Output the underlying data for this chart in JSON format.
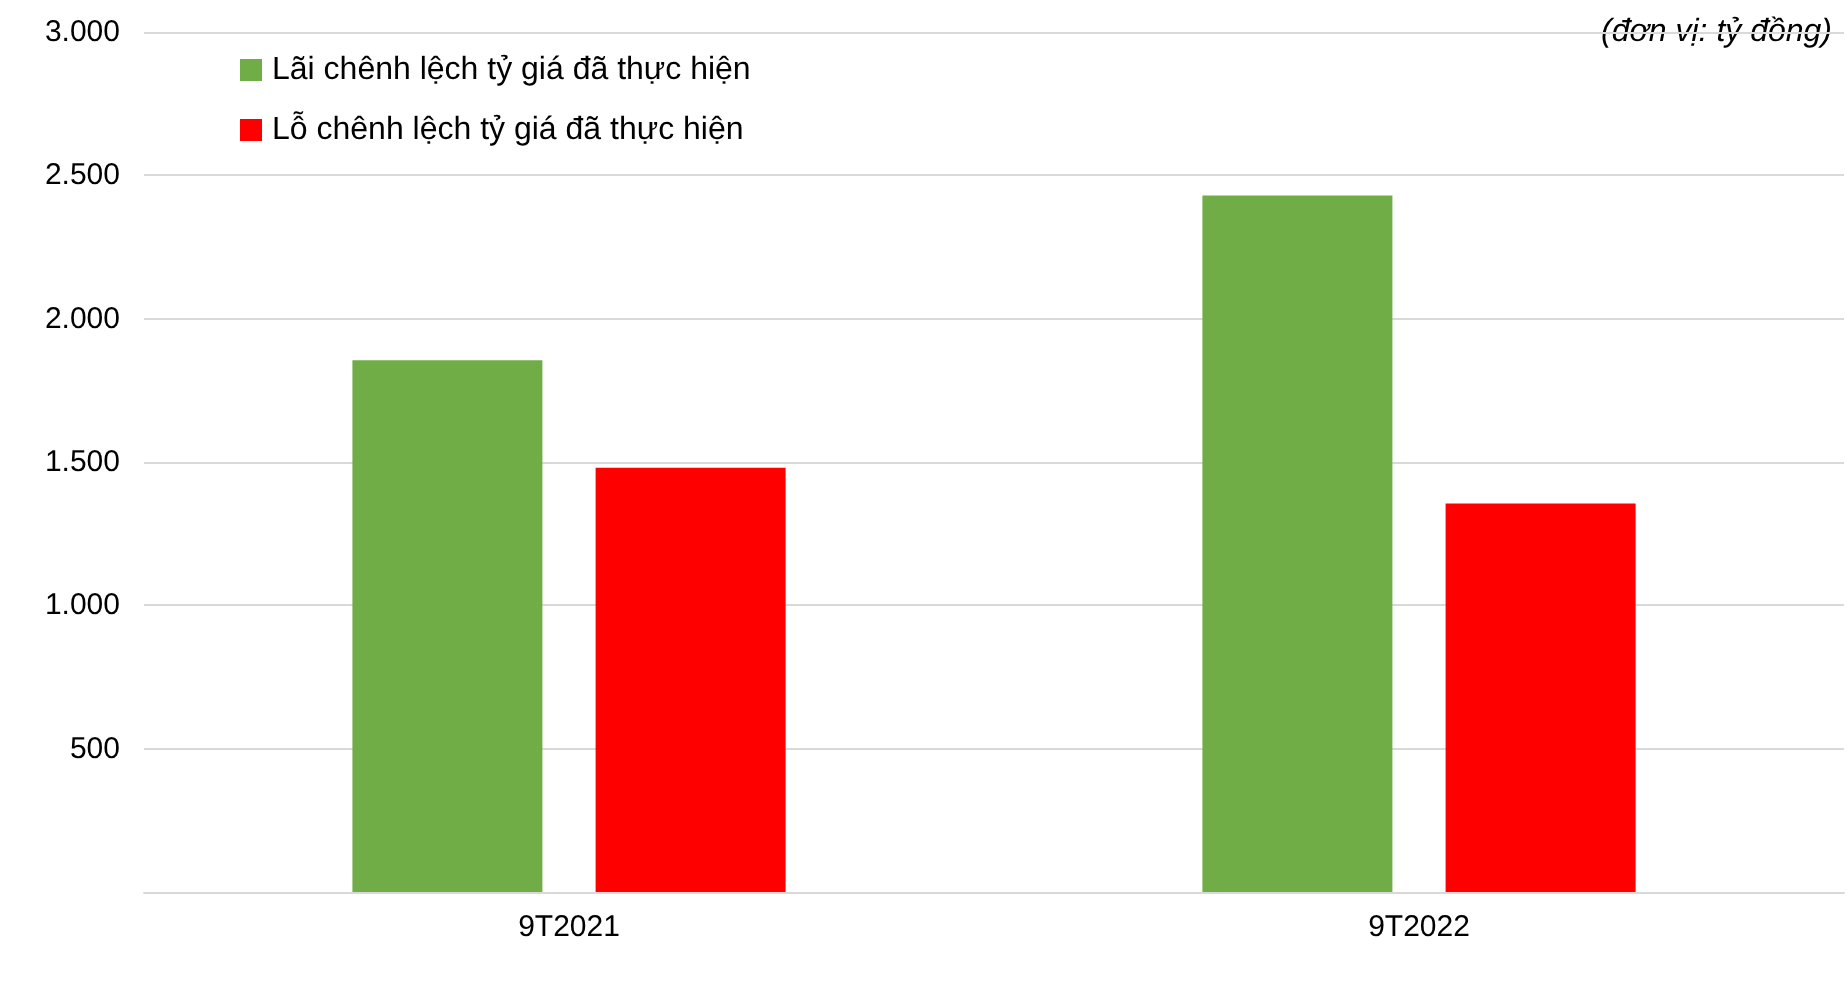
{
  "chart_data": {
    "type": "bar",
    "categories": [
      "9T2021",
      "9T2022"
    ],
    "series": [
      {
        "name": "Lãi chênh lệch tỷ giá đã thực hiện",
        "color": "#70ad47",
        "values": [
          1855,
          2430
        ]
      },
      {
        "name": "Lỗ chênh lệch tỷ giá đã thực hiện",
        "color": "#ff0000",
        "values": [
          1480,
          1355
        ]
      }
    ],
    "ylim": [
      0,
      3000
    ],
    "yticks": [
      {
        "value": 0,
        "label": null
      },
      {
        "value": 500,
        "label": "500"
      },
      {
        "value": 1000,
        "label": "1.000"
      },
      {
        "value": 1500,
        "label": "1.500"
      },
      {
        "value": 2000,
        "label": "2.000"
      },
      {
        "value": 2500,
        "label": "2.500"
      },
      {
        "value": 3000,
        "label": "3.000"
      }
    ],
    "annotations": [
      "(đơn vị: tỷ đồng)"
    ],
    "grid": "y",
    "legend": "top left"
  }
}
